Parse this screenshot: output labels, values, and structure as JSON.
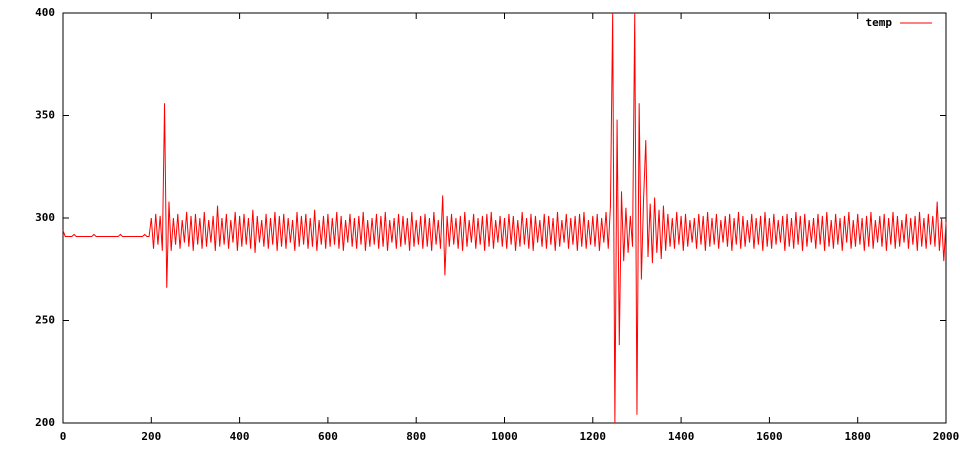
{
  "chart_data": {
    "type": "line",
    "x": [
      0,
      5,
      10,
      15,
      20,
      25,
      30,
      35,
      40,
      45,
      50,
      55,
      60,
      65,
      70,
      75,
      80,
      85,
      90,
      95,
      100,
      105,
      110,
      115,
      120,
      125,
      130,
      135,
      140,
      145,
      150,
      155,
      160,
      165,
      170,
      175,
      180,
      185,
      190,
      195,
      200,
      205,
      210,
      215,
      220,
      225,
      230,
      235,
      240,
      245,
      250,
      255,
      260,
      265,
      270,
      275,
      280,
      285,
      290,
      295,
      300,
      305,
      310,
      315,
      320,
      325,
      330,
      335,
      340,
      345,
      350,
      355,
      360,
      365,
      370,
      375,
      380,
      385,
      390,
      395,
      400,
      405,
      410,
      415,
      420,
      425,
      430,
      435,
      440,
      445,
      450,
      455,
      460,
      465,
      470,
      475,
      480,
      485,
      490,
      495,
      500,
      505,
      510,
      515,
      520,
      525,
      530,
      535,
      540,
      545,
      550,
      555,
      560,
      565,
      570,
      575,
      580,
      585,
      590,
      595,
      600,
      605,
      610,
      615,
      620,
      625,
      630,
      635,
      640,
      645,
      650,
      655,
      660,
      665,
      670,
      675,
      680,
      685,
      690,
      695,
      700,
      705,
      710,
      715,
      720,
      725,
      730,
      735,
      740,
      745,
      750,
      755,
      760,
      765,
      770,
      775,
      780,
      785,
      790,
      795,
      800,
      805,
      810,
      815,
      820,
      825,
      830,
      835,
      840,
      845,
      850,
      855,
      860,
      865,
      870,
      875,
      880,
      885,
      890,
      895,
      900,
      905,
      910,
      915,
      920,
      925,
      930,
      935,
      940,
      945,
      950,
      955,
      960,
      965,
      970,
      975,
      980,
      985,
      990,
      995,
      1000,
      1005,
      1010,
      1015,
      1020,
      1025,
      1030,
      1035,
      1040,
      1045,
      1050,
      1055,
      1060,
      1065,
      1070,
      1075,
      1080,
      1085,
      1090,
      1095,
      1100,
      1105,
      1110,
      1115,
      1120,
      1125,
      1130,
      1135,
      1140,
      1145,
      1150,
      1155,
      1160,
      1165,
      1170,
      1175,
      1180,
      1185,
      1190,
      1195,
      1200,
      1205,
      1210,
      1215,
      1220,
      1225,
      1230,
      1235,
      1240,
      1245,
      1250,
      1255,
      1260,
      1265,
      1270,
      1275,
      1280,
      1285,
      1290,
      1295,
      1300,
      1305,
      1310,
      1315,
      1320,
      1325,
      1330,
      1335,
      1340,
      1345,
      1350,
      1355,
      1360,
      1365,
      1370,
      1375,
      1380,
      1385,
      1390,
      1395,
      1400,
      1405,
      1410,
      1415,
      1420,
      1425,
      1430,
      1435,
      1440,
      1445,
      1450,
      1455,
      1460,
      1465,
      1470,
      1475,
      1480,
      1485,
      1490,
      1495,
      1500,
      1505,
      1510,
      1515,
      1520,
      1525,
      1530,
      1535,
      1540,
      1545,
      1550,
      1555,
      1560,
      1565,
      1570,
      1575,
      1580,
      1585,
      1590,
      1595,
      1600,
      1605,
      1610,
      1615,
      1620,
      1625,
      1630,
      1635,
      1640,
      1645,
      1650,
      1655,
      1660,
      1665,
      1670,
      1675,
      1680,
      1685,
      1690,
      1695,
      1700,
      1705,
      1710,
      1715,
      1720,
      1725,
      1730,
      1735,
      1740,
      1745,
      1750,
      1755,
      1760,
      1765,
      1770,
      1775,
      1780,
      1785,
      1790,
      1795,
      1800,
      1805,
      1810,
      1815,
      1820,
      1825,
      1830,
      1835,
      1840,
      1845,
      1850,
      1855,
      1860,
      1865,
      1870,
      1875,
      1880,
      1885,
      1890,
      1895,
      1900,
      1905,
      1910,
      1915,
      1920,
      1925,
      1930,
      1935,
      1940,
      1945,
      1950,
      1955,
      1960,
      1965,
      1970,
      1975,
      1980,
      1985,
      1990,
      1995,
      2000
    ],
    "series": [
      {
        "name": "temp",
        "color": "#ff0000",
        "values": [
          294,
          291,
          291,
          291,
          291,
          292,
          291,
          291,
          291,
          291,
          291,
          291,
          291,
          291,
          292,
          291,
          291,
          291,
          291,
          291,
          291,
          291,
          291,
          291,
          291,
          291,
          292,
          291,
          291,
          291,
          291,
          291,
          291,
          291,
          291,
          291,
          291,
          292,
          291,
          291,
          300,
          285,
          302,
          287,
          301,
          284,
          356,
          266,
          308,
          284,
          300,
          287,
          302,
          285,
          299,
          288,
          303,
          286,
          301,
          284,
          302,
          287,
          300,
          285,
          303,
          286,
          299,
          288,
          301,
          284,
          306,
          286,
          300,
          287,
          302,
          285,
          299,
          288,
          303,
          284,
          301,
          286,
          302,
          287,
          300,
          285,
          304,
          283,
          301,
          288,
          299,
          286,
          302,
          285,
          300,
          287,
          303,
          284,
          301,
          286,
          302,
          285,
          300,
          288,
          299,
          284,
          303,
          286,
          301,
          287,
          302,
          285,
          300,
          286,
          304,
          284,
          299,
          287,
          301,
          285,
          302,
          286,
          300,
          287,
          303,
          285,
          301,
          284,
          299,
          288,
          302,
          286,
          300,
          285,
          301,
          287,
          303,
          284,
          299,
          286,
          300,
          287,
          302,
          285,
          301,
          286,
          303,
          284,
          299,
          288,
          300,
          285,
          302,
          286,
          301,
          287,
          300,
          284,
          303,
          286,
          299,
          287,
          301,
          285,
          302,
          286,
          300,
          284,
          303,
          287,
          299,
          285,
          311,
          272,
          301,
          286,
          302,
          287,
          300,
          285,
          301,
          284,
          303,
          286,
          299,
          288,
          302,
          285,
          300,
          287,
          301,
          284,
          302,
          286,
          303,
          285,
          299,
          288,
          301,
          286,
          300,
          285,
          302,
          287,
          301,
          284,
          299,
          286,
          303,
          287,
          300,
          285,
          302,
          284,
          301,
          288,
          299,
          286,
          302,
          285,
          301,
          287,
          300,
          284,
          303,
          286,
          299,
          288,
          302,
          285,
          300,
          287,
          301,
          284,
          302,
          286,
          303,
          285,
          299,
          287,
          301,
          286,
          302,
          284,
          300,
          288,
          303,
          285,
          306,
          400,
          200,
          348,
          238,
          313,
          279,
          305,
          283,
          301,
          286,
          400,
          204,
          356,
          270,
          309,
          338,
          281,
          307,
          278,
          310,
          283,
          304,
          280,
          306,
          284,
          302,
          286,
          300,
          285,
          303,
          287,
          301,
          284,
          302,
          286,
          299,
          288,
          300,
          285,
          302,
          287,
          301,
          284,
          303,
          286,
          300,
          287,
          302,
          285,
          299,
          288,
          301,
          286,
          302,
          284,
          300,
          287,
          303,
          285,
          301,
          286,
          299,
          288,
          302,
          285,
          300,
          287,
          301,
          284,
          303,
          286,
          300,
          285,
          302,
          287,
          299,
          288,
          301,
          284,
          302,
          286,
          300,
          285,
          303,
          287,
          301,
          284,
          302,
          286,
          299,
          288,
          300,
          285,
          302,
          287,
          301,
          284,
          303,
          286,
          299,
          285,
          302,
          287,
          300,
          284,
          301,
          288,
          303,
          285,
          299,
          286,
          302,
          287,
          300,
          284,
          301,
          286,
          303,
          285,
          299,
          288,
          301,
          286,
          302,
          284,
          300,
          287,
          303,
          285,
          301,
          286,
          299,
          288,
          302,
          285,
          300,
          287,
          301,
          284,
          303,
          286,
          300,
          285,
          302,
          287,
          301,
          286,
          308,
          284,
          300,
          279,
          298
        ]
      }
    ],
    "xlim": [
      0,
      2000
    ],
    "xticks": [
      0,
      200,
      400,
      600,
      800,
      1000,
      1200,
      1400,
      1600,
      1800,
      2000
    ],
    "ylim": [
      200,
      400
    ],
    "yticks": [
      200,
      250,
      300,
      350,
      400
    ],
    "legend": "top-right"
  }
}
